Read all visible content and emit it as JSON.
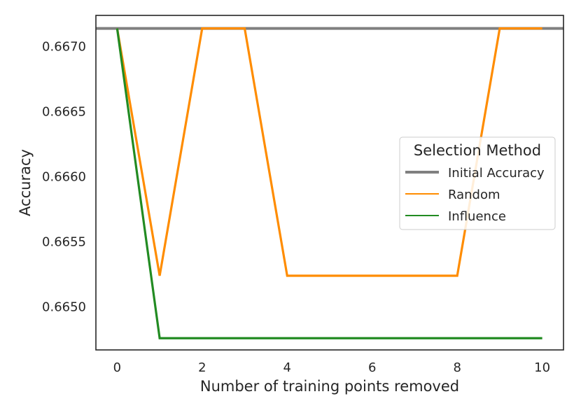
{
  "chart_data": {
    "type": "line",
    "title": "",
    "xlabel": "Number of training points removed",
    "ylabel": "Accuracy",
    "xlim": [
      -0.5,
      10.5
    ],
    "ylim": [
      0.66467,
      0.66724
    ],
    "x": [
      0,
      1,
      2,
      3,
      4,
      5,
      6,
      7,
      8,
      9,
      10
    ],
    "xticks": [
      0,
      2,
      4,
      6,
      8,
      10
    ],
    "xtick_labels": [
      "0",
      "2",
      "4",
      "6",
      "8",
      "10"
    ],
    "yticks": [
      0.665,
      0.6655,
      0.666,
      0.6665,
      0.667
    ],
    "ytick_labels": [
      "0.6650",
      "0.6655",
      "0.6660",
      "0.6665",
      "0.6670"
    ],
    "grid": false,
    "legend": {
      "title": "Selection Method",
      "placement": "center-right",
      "entries": [
        "Initial Accuracy",
        "Random",
        "Influence"
      ]
    },
    "series": [
      {
        "name": "Initial Accuracy",
        "kind": "hline",
        "value": 0.66714,
        "color": "#808080"
      },
      {
        "name": "Random",
        "color": "#ff8c00",
        "values": [
          0.66714,
          0.66524,
          0.66714,
          0.66714,
          0.66524,
          0.66524,
          0.66524,
          0.66524,
          0.66524,
          0.66714,
          0.66714
        ]
      },
      {
        "name": "Influence",
        "color": "#228b22",
        "values": [
          0.66714,
          0.66476,
          0.66476,
          0.66476,
          0.66476,
          0.66476,
          0.66476,
          0.66476,
          0.66476,
          0.66476,
          0.66476
        ]
      }
    ]
  }
}
